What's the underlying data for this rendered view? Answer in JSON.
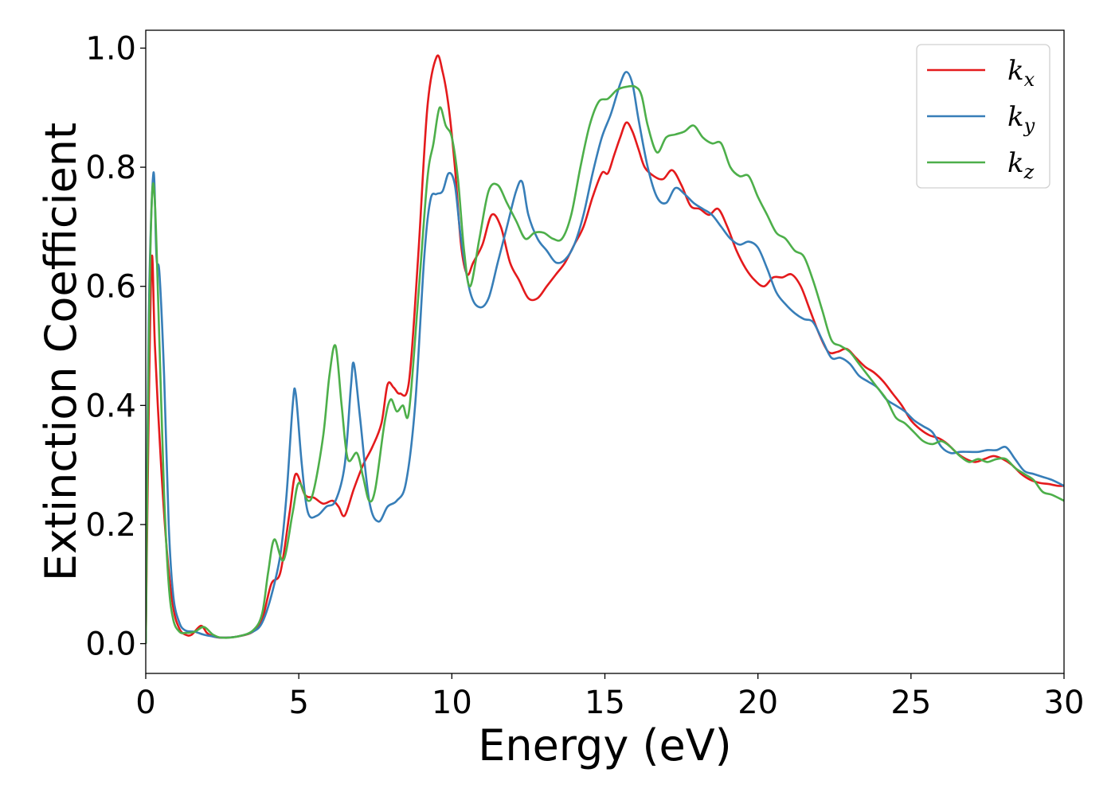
{
  "chart_data": {
    "type": "line",
    "title": "",
    "xlabel": "Energy (eV)",
    "ylabel": "Extinction Coefficient",
    "xlim": [
      0,
      30
    ],
    "ylim": [
      -0.05,
      1.03
    ],
    "xticks": [
      0,
      5,
      10,
      15,
      20,
      25,
      30
    ],
    "xtick_labels": [
      "0",
      "5",
      "10",
      "15",
      "20",
      "25",
      "30"
    ],
    "yticks": [
      0.0,
      0.2,
      0.4,
      0.6,
      0.8,
      1.0
    ],
    "ytick_labels": [
      "0.0",
      "0.2",
      "0.4",
      "0.6",
      "0.8",
      "1.0"
    ],
    "grid": false,
    "legend_position": "top-right",
    "series": [
      {
        "name": "k_x",
        "label_main": "k",
        "label_sub": "x",
        "color": "#e41a1c",
        "x": [
          0,
          0.1,
          0.2,
          0.3,
          0.5,
          0.7,
          0.9,
          1.1,
          1.3,
          1.5,
          1.8,
          2.0,
          2.2,
          2.5,
          3.0,
          3.5,
          3.8,
          4.1,
          4.4,
          4.7,
          4.9,
          5.2,
          5.5,
          5.8,
          6.1,
          6.3,
          6.5,
          6.8,
          7.1,
          7.4,
          7.7,
          7.9,
          8.1,
          8.3,
          8.6,
          8.9,
          9.2,
          9.5,
          9.7,
          9.9,
          10.1,
          10.3,
          10.5,
          10.7,
          11.0,
          11.3,
          11.6,
          11.9,
          12.2,
          12.5,
          12.8,
          13.1,
          13.4,
          13.7,
          14.0,
          14.3,
          14.6,
          14.9,
          15.1,
          15.3,
          15.5,
          15.7,
          15.9,
          16.1,
          16.3,
          16.6,
          16.9,
          17.2,
          17.5,
          17.8,
          18.1,
          18.4,
          18.7,
          19.0,
          19.3,
          19.6,
          19.9,
          20.2,
          20.5,
          20.8,
          21.1,
          21.4,
          21.7,
          22.0,
          22.3,
          22.6,
          22.9,
          23.2,
          23.5,
          23.8,
          24.1,
          24.4,
          24.7,
          25.0,
          25.3,
          25.6,
          25.9,
          26.2,
          26.5,
          26.8,
          27.1,
          27.4,
          27.7,
          28.0,
          28.3,
          28.6,
          28.9,
          29.2,
          29.5,
          29.8,
          30.0
        ],
        "y": [
          0.0,
          0.4,
          0.65,
          0.5,
          0.3,
          0.15,
          0.06,
          0.025,
          0.015,
          0.015,
          0.03,
          0.018,
          0.012,
          0.01,
          0.012,
          0.02,
          0.04,
          0.1,
          0.12,
          0.22,
          0.285,
          0.25,
          0.245,
          0.235,
          0.24,
          0.23,
          0.215,
          0.26,
          0.3,
          0.33,
          0.37,
          0.435,
          0.43,
          0.42,
          0.44,
          0.65,
          0.9,
          0.985,
          0.96,
          0.9,
          0.8,
          0.67,
          0.62,
          0.64,
          0.67,
          0.72,
          0.7,
          0.64,
          0.61,
          0.58,
          0.58,
          0.6,
          0.62,
          0.64,
          0.67,
          0.7,
          0.75,
          0.79,
          0.79,
          0.82,
          0.85,
          0.875,
          0.86,
          0.83,
          0.8,
          0.785,
          0.78,
          0.795,
          0.77,
          0.735,
          0.73,
          0.72,
          0.73,
          0.7,
          0.66,
          0.63,
          0.61,
          0.6,
          0.615,
          0.615,
          0.62,
          0.6,
          0.56,
          0.52,
          0.49,
          0.49,
          0.495,
          0.48,
          0.465,
          0.455,
          0.44,
          0.42,
          0.4,
          0.375,
          0.36,
          0.35,
          0.345,
          0.335,
          0.32,
          0.31,
          0.305,
          0.31,
          0.315,
          0.31,
          0.3,
          0.285,
          0.275,
          0.27,
          0.268,
          0.265,
          0.265
        ]
      },
      {
        "name": "k_y",
        "label_main": "k",
        "label_sub": "y",
        "color": "#377eb8",
        "x": [
          0,
          0.1,
          0.25,
          0.35,
          0.45,
          0.6,
          0.75,
          0.9,
          1.1,
          1.3,
          1.6,
          1.9,
          2.2,
          2.5,
          3.0,
          3.5,
          3.8,
          4.1,
          4.4,
          4.6,
          4.8,
          4.9,
          5.1,
          5.3,
          5.6,
          5.9,
          6.2,
          6.5,
          6.7,
          6.8,
          7.0,
          7.3,
          7.6,
          7.9,
          8.2,
          8.5,
          8.8,
          9.1,
          9.3,
          9.5,
          9.7,
          9.9,
          10.1,
          10.3,
          10.6,
          10.9,
          11.2,
          11.5,
          11.8,
          12.1,
          12.3,
          12.5,
          12.8,
          13.1,
          13.4,
          13.7,
          14.0,
          14.3,
          14.6,
          14.9,
          15.2,
          15.5,
          15.7,
          15.9,
          16.1,
          16.4,
          16.7,
          17.0,
          17.3,
          17.6,
          17.9,
          18.2,
          18.5,
          18.8,
          19.1,
          19.4,
          19.7,
          20.0,
          20.3,
          20.6,
          20.9,
          21.2,
          21.5,
          21.8,
          22.1,
          22.4,
          22.7,
          23.0,
          23.3,
          23.6,
          23.9,
          24.2,
          24.5,
          24.8,
          25.1,
          25.4,
          25.7,
          26.0,
          26.3,
          26.6,
          26.9,
          27.2,
          27.5,
          27.8,
          28.1,
          28.4,
          28.7,
          29.0,
          29.3,
          29.6,
          30.0
        ],
        "y": [
          0.0,
          0.55,
          0.79,
          0.65,
          0.62,
          0.45,
          0.2,
          0.08,
          0.035,
          0.022,
          0.02,
          0.015,
          0.012,
          0.01,
          0.012,
          0.02,
          0.035,
          0.08,
          0.15,
          0.25,
          0.4,
          0.42,
          0.3,
          0.22,
          0.215,
          0.23,
          0.24,
          0.3,
          0.43,
          0.47,
          0.38,
          0.24,
          0.205,
          0.23,
          0.24,
          0.27,
          0.4,
          0.65,
          0.745,
          0.755,
          0.76,
          0.79,
          0.77,
          0.68,
          0.59,
          0.565,
          0.58,
          0.64,
          0.7,
          0.76,
          0.775,
          0.72,
          0.68,
          0.66,
          0.64,
          0.645,
          0.67,
          0.72,
          0.79,
          0.85,
          0.89,
          0.94,
          0.96,
          0.94,
          0.88,
          0.8,
          0.75,
          0.74,
          0.765,
          0.755,
          0.74,
          0.73,
          0.72,
          0.7,
          0.68,
          0.67,
          0.675,
          0.665,
          0.63,
          0.59,
          0.57,
          0.555,
          0.545,
          0.54,
          0.51,
          0.48,
          0.48,
          0.47,
          0.45,
          0.44,
          0.43,
          0.41,
          0.4,
          0.39,
          0.375,
          0.365,
          0.355,
          0.33,
          0.32,
          0.322,
          0.322,
          0.322,
          0.325,
          0.325,
          0.33,
          0.31,
          0.29,
          0.285,
          0.28,
          0.275,
          0.265
        ]
      },
      {
        "name": "k_z",
        "label_main": "k",
        "label_sub": "z",
        "color": "#4daf4a",
        "x": [
          0,
          0.1,
          0.2,
          0.3,
          0.45,
          0.6,
          0.75,
          0.9,
          1.1,
          1.3,
          1.6,
          1.9,
          2.2,
          2.5,
          3.0,
          3.5,
          3.8,
          4.0,
          4.2,
          4.5,
          4.8,
          5.0,
          5.3,
          5.5,
          5.8,
          6.0,
          6.2,
          6.4,
          6.6,
          6.9,
          7.1,
          7.3,
          7.5,
          7.8,
          8.0,
          8.2,
          8.4,
          8.6,
          8.9,
          9.2,
          9.4,
          9.6,
          9.8,
          10.0,
          10.2,
          10.4,
          10.6,
          10.9,
          11.2,
          11.5,
          11.8,
          12.1,
          12.4,
          12.7,
          13.0,
          13.3,
          13.6,
          13.9,
          14.2,
          14.5,
          14.8,
          15.1,
          15.4,
          15.7,
          16.0,
          16.2,
          16.4,
          16.7,
          17.0,
          17.3,
          17.6,
          17.9,
          18.2,
          18.5,
          18.8,
          19.1,
          19.4,
          19.7,
          20.0,
          20.3,
          20.6,
          20.9,
          21.2,
          21.5,
          21.8,
          22.1,
          22.4,
          22.7,
          23.0,
          23.3,
          23.6,
          23.9,
          24.2,
          24.5,
          24.8,
          25.1,
          25.4,
          25.7,
          26.0,
          26.3,
          26.6,
          26.9,
          27.2,
          27.5,
          27.8,
          28.1,
          28.4,
          28.7,
          29.0,
          29.3,
          29.6,
          30.0
        ],
        "y": [
          0.0,
          0.5,
          0.745,
          0.74,
          0.5,
          0.25,
          0.1,
          0.04,
          0.02,
          0.018,
          0.02,
          0.028,
          0.015,
          0.01,
          0.012,
          0.022,
          0.05,
          0.12,
          0.175,
          0.14,
          0.22,
          0.27,
          0.24,
          0.26,
          0.35,
          0.45,
          0.5,
          0.4,
          0.31,
          0.32,
          0.28,
          0.24,
          0.26,
          0.37,
          0.41,
          0.39,
          0.4,
          0.39,
          0.58,
          0.78,
          0.84,
          0.9,
          0.87,
          0.85,
          0.78,
          0.66,
          0.6,
          0.68,
          0.76,
          0.77,
          0.74,
          0.71,
          0.68,
          0.69,
          0.69,
          0.68,
          0.68,
          0.72,
          0.8,
          0.87,
          0.91,
          0.915,
          0.93,
          0.935,
          0.935,
          0.92,
          0.87,
          0.825,
          0.85,
          0.855,
          0.86,
          0.87,
          0.85,
          0.84,
          0.84,
          0.8,
          0.785,
          0.785,
          0.75,
          0.72,
          0.69,
          0.68,
          0.66,
          0.65,
          0.61,
          0.56,
          0.51,
          0.5,
          0.49,
          0.47,
          0.45,
          0.43,
          0.41,
          0.38,
          0.37,
          0.355,
          0.34,
          0.335,
          0.34,
          0.33,
          0.315,
          0.305,
          0.31,
          0.305,
          0.31,
          0.31,
          0.295,
          0.285,
          0.275,
          0.255,
          0.25,
          0.24
        ]
      }
    ]
  }
}
